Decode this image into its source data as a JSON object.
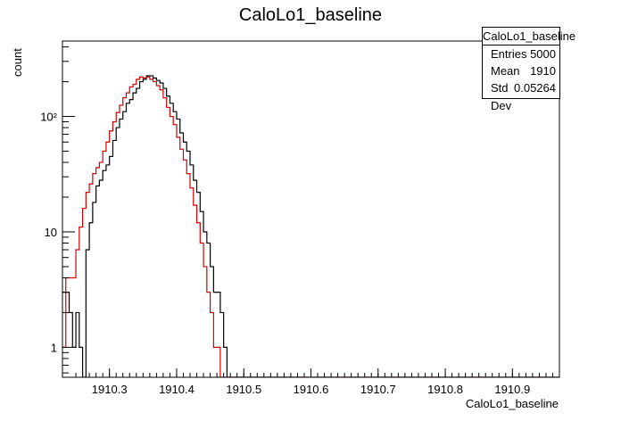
{
  "chart_data": {
    "type": "histogram",
    "title": "CaloLo1_baseline",
    "xlabel": "CaloLo1_baseline",
    "ylabel": "count",
    "xlim": [
      1910.23,
      1910.97
    ],
    "ylim": [
      0.55,
      450
    ],
    "yscale": "log",
    "x_ticks": [
      1910.3,
      1910.4,
      1910.5,
      1910.6,
      1910.7,
      1910.8,
      1910.9
    ],
    "x_tick_labels": [
      "1910.3",
      "1910.4",
      "1910.5",
      "1910.6",
      "1910.7",
      "1910.8",
      "1910.9"
    ],
    "y_ticks": [
      1,
      10,
      100
    ],
    "y_tick_labels": [
      "1",
      "10",
      "10²"
    ],
    "bin_width": 0.005,
    "bin_start": 1910.23,
    "series": [
      {
        "color": "#000000",
        "values": [
          3,
          3,
          2,
          1,
          2,
          1,
          0,
          7,
          12,
          18,
          25,
          28,
          34,
          38,
          45,
          62,
          80,
          95,
          110,
          130,
          140,
          160,
          175,
          200,
          210,
          225,
          225,
          215,
          205,
          195,
          175,
          150,
          130,
          110,
          95,
          72,
          60,
          50,
          38,
          28,
          22,
          15,
          10,
          8,
          5,
          3,
          3,
          2,
          1,
          0,
          0,
          0,
          0,
          0,
          0,
          0,
          0,
          0,
          0,
          0,
          0,
          0,
          0,
          0,
          0,
          0,
          0,
          0,
          0,
          0,
          0,
          0,
          0,
          0,
          0,
          0,
          0,
          0,
          0,
          0,
          0,
          0,
          0,
          0,
          0,
          0,
          0,
          0,
          0,
          0,
          0,
          0,
          0,
          0,
          0,
          0,
          0,
          0,
          0,
          0,
          0,
          0,
          0,
          0,
          0,
          0,
          0,
          0,
          0,
          0,
          0,
          0,
          0,
          0,
          0,
          0,
          0,
          0,
          0,
          0,
          0,
          0,
          0,
          0,
          0,
          0,
          0,
          0,
          0,
          0,
          0,
          0,
          0,
          0,
          0,
          0,
          0,
          0,
          0,
          0,
          0,
          0,
          0,
          0,
          0,
          0,
          0,
          0,
          0,
          0,
          0
        ]
      },
      {
        "color": "#d00000",
        "values": [
          1,
          4,
          4,
          4,
          7,
          11,
          16,
          22,
          26,
          32,
          36,
          40,
          50,
          60,
          75,
          90,
          108,
          125,
          145,
          160,
          180,
          190,
          210,
          220,
          215,
          220,
          210,
          200,
          185,
          170,
          145,
          120,
          100,
          85,
          66,
          52,
          42,
          32,
          24,
          17,
          12,
          8,
          5,
          3,
          2,
          1,
          1,
          0,
          0,
          0,
          0,
          0,
          0,
          0,
          0,
          0,
          0,
          0,
          0,
          0,
          0,
          0,
          0,
          0,
          0,
          0,
          0,
          0,
          0,
          0,
          0,
          0,
          0,
          0,
          0,
          0,
          0,
          0,
          0,
          0,
          0,
          0,
          0,
          0,
          0,
          0,
          0,
          0,
          0,
          0,
          0,
          0,
          0,
          0,
          0,
          0,
          0,
          0,
          0,
          0,
          0,
          0,
          0,
          0,
          0,
          0,
          0,
          0,
          0,
          0,
          0,
          0,
          0,
          0,
          0,
          0,
          0,
          0,
          0,
          0,
          0,
          0,
          0,
          0,
          0,
          0,
          0,
          0,
          0,
          0,
          0,
          0,
          0,
          0,
          0,
          0,
          0,
          0,
          0,
          0,
          0,
          0,
          0,
          0,
          0,
          0,
          0,
          0,
          0,
          0
        ]
      }
    ]
  },
  "stats_box": {
    "title": "CaloLo1_baseline",
    "entries_label": "Entries",
    "entries_value": "5000",
    "mean_label": "Mean",
    "mean_value": "1910",
    "stddev_label": "Std Dev",
    "stddev_value": "0.05264"
  }
}
